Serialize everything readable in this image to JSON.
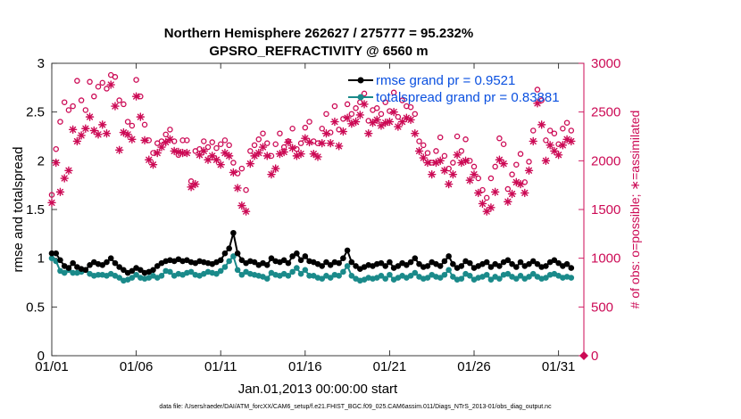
{
  "chart_data": {
    "type": "line",
    "title": "Northern Hemisphere 262627 / 275777 = 95.232%",
    "subtitle": "GPSRO_REFRACTIVITY @ 6560 m",
    "xlabel": "Jan.01,2013 00:00:00 start",
    "ylabel": "rmse and totalspread",
    "ylabel_right": "# of obs: o=possible; ∗=assimilated",
    "footer": "data file: /Users/raeder/DAI/ATM_forcXX/CAM6_setup/f.e21.FHIST_BGC.f09_025.CAM6assim.011/Diags_NTrS_2013-01/obs_diag_output.nc",
    "xlim": [
      1,
      32.5
    ],
    "ylim": [
      0,
      3
    ],
    "ylim_right": [
      0,
      3000
    ],
    "x_ticks": [
      1,
      6,
      11,
      16,
      21,
      26,
      31
    ],
    "x_tick_labels": [
      "01/01",
      "01/06",
      "01/11",
      "01/16",
      "01/21",
      "01/26",
      "01/31"
    ],
    "y_ticks": [
      0,
      0.5,
      1,
      1.5,
      2,
      2.5,
      3
    ],
    "y_tick_labels": [
      "0",
      "0.5",
      "1",
      "1.5",
      "2",
      "2.5",
      "3"
    ],
    "y_right_ticks": [
      0,
      500,
      1000,
      1500,
      2000,
      2500,
      3000
    ],
    "y_right_tick_labels": [
      "0",
      "500",
      "1000",
      "1500",
      "2000",
      "2500",
      "3000"
    ],
    "grid": false,
    "legend_position": "top-right",
    "colors": {
      "rmse": "#000000",
      "totalspread": "#1a8a8a",
      "obs": "#cc0a55",
      "legend_text": "#0a50e0"
    },
    "x": [
      1.0,
      1.25,
      1.5,
      1.75,
      2.0,
      2.25,
      2.5,
      2.75,
      3.0,
      3.25,
      3.5,
      3.75,
      4.0,
      4.25,
      4.5,
      4.75,
      5.0,
      5.25,
      5.5,
      5.75,
      6.0,
      6.25,
      6.5,
      6.75,
      7.0,
      7.25,
      7.5,
      7.75,
      8.0,
      8.25,
      8.5,
      8.75,
      9.0,
      9.25,
      9.5,
      9.75,
      10.0,
      10.25,
      10.5,
      10.75,
      11.0,
      11.25,
      11.5,
      11.75,
      12.0,
      12.25,
      12.5,
      12.75,
      13.0,
      13.25,
      13.5,
      13.75,
      14.0,
      14.25,
      14.5,
      14.75,
      15.0,
      15.25,
      15.5,
      15.75,
      16.0,
      16.25,
      16.5,
      16.75,
      17.0,
      17.25,
      17.5,
      17.75,
      18.0,
      18.25,
      18.5,
      18.75,
      19.0,
      19.25,
      19.5,
      19.75,
      20.0,
      20.25,
      20.5,
      20.75,
      21.0,
      21.25,
      21.5,
      21.75,
      22.0,
      22.25,
      22.5,
      22.75,
      23.0,
      23.25,
      23.5,
      23.75,
      24.0,
      24.25,
      24.5,
      24.75,
      25.0,
      25.25,
      25.5,
      25.75,
      26.0,
      26.25,
      26.5,
      26.75,
      27.0,
      27.25,
      27.5,
      27.75,
      28.0,
      28.25,
      28.5,
      28.75,
      29.0,
      29.25,
      29.5,
      29.75,
      30.0,
      30.25,
      30.5,
      30.75,
      31.0,
      31.25,
      31.5,
      31.75
    ],
    "series": [
      {
        "name": "rmse grand pr = 0.9521",
        "axis": "left",
        "style": "black-line-dots",
        "values": [
          1.05,
          1.05,
          0.98,
          0.92,
          0.9,
          0.95,
          0.91,
          0.89,
          0.88,
          0.93,
          0.96,
          0.94,
          0.93,
          0.96,
          1.0,
          0.95,
          0.91,
          0.88,
          0.85,
          0.87,
          0.9,
          0.88,
          0.85,
          0.86,
          0.88,
          0.92,
          0.95,
          0.97,
          0.98,
          0.97,
          0.99,
          0.97,
          0.98,
          0.96,
          0.95,
          0.97,
          0.96,
          0.95,
          0.94,
          0.96,
          0.98,
          1.05,
          1.1,
          1.26,
          1.05,
          0.98,
          0.95,
          0.97,
          0.96,
          0.93,
          0.95,
          0.93,
          1.0,
          0.97,
          0.96,
          0.98,
          0.95,
          1.02,
          1.05,
          0.98,
          1.02,
          0.97,
          0.96,
          0.94,
          0.92,
          0.96,
          0.93,
          0.96,
          0.95,
          1.0,
          1.08,
          0.96,
          0.92,
          0.89,
          0.91,
          0.93,
          0.92,
          0.94,
          0.95,
          0.92,
          0.96,
          0.9,
          0.92,
          0.95,
          0.93,
          0.96,
          1.0,
          0.94,
          0.91,
          0.92,
          0.96,
          0.94,
          0.92,
          0.97,
          1.02,
          0.94,
          0.9,
          0.92,
          0.97,
          0.95,
          0.9,
          0.92,
          0.94,
          0.96,
          0.91,
          0.94,
          0.92,
          0.96,
          0.98,
          0.94,
          0.91,
          0.96,
          0.92,
          0.94,
          0.97,
          0.94,
          0.91,
          0.92,
          0.96,
          0.98,
          0.95,
          0.92,
          0.94,
          0.9
        ],
        "std": null
      },
      {
        "name": "totalspread grand pr = 0.83881",
        "axis": "left",
        "style": "teal-line-dots",
        "values": [
          1.0,
          0.97,
          0.87,
          0.85,
          0.88,
          0.85,
          0.85,
          0.86,
          0.88,
          0.84,
          0.82,
          0.83,
          0.83,
          0.82,
          0.84,
          0.82,
          0.8,
          0.77,
          0.78,
          0.8,
          0.83,
          0.8,
          0.79,
          0.8,
          0.82,
          0.8,
          0.82,
          0.87,
          0.86,
          0.82,
          0.84,
          0.83,
          0.85,
          0.86,
          0.83,
          0.82,
          0.84,
          0.86,
          0.85,
          0.84,
          0.87,
          0.91,
          0.97,
          1.02,
          0.88,
          0.83,
          0.86,
          0.84,
          0.83,
          0.82,
          0.81,
          0.79,
          0.85,
          0.83,
          0.82,
          0.84,
          0.82,
          0.86,
          0.9,
          0.84,
          0.88,
          0.82,
          0.82,
          0.8,
          0.79,
          0.82,
          0.8,
          0.83,
          0.82,
          0.86,
          0.92,
          0.82,
          0.79,
          0.77,
          0.78,
          0.8,
          0.79,
          0.8,
          0.82,
          0.79,
          0.83,
          0.78,
          0.8,
          0.82,
          0.8,
          0.82,
          0.85,
          0.81,
          0.79,
          0.8,
          0.83,
          0.81,
          0.8,
          0.83,
          0.88,
          0.81,
          0.78,
          0.79,
          0.84,
          0.82,
          0.78,
          0.8,
          0.81,
          0.83,
          0.78,
          0.81,
          0.79,
          0.83,
          0.84,
          0.81,
          0.79,
          0.82,
          0.79,
          0.81,
          0.84,
          0.81,
          0.79,
          0.8,
          0.83,
          0.84,
          0.82,
          0.8,
          0.81,
          0.8
        ]
      },
      {
        "name": "possible",
        "axis": "right",
        "style": "pink-circles",
        "values": [
          1650,
          2120,
          2400,
          2600,
          2520,
          2560,
          2820,
          2620,
          2520,
          2810,
          2660,
          2760,
          2800,
          2740,
          2880,
          2860,
          2620,
          2580,
          2400,
          2360,
          2830,
          2660,
          2370,
          2210,
          2080,
          2180,
          2200,
          2270,
          2320,
          2200,
          2060,
          2210,
          2210,
          1790,
          2100,
          2120,
          2200,
          2140,
          2190,
          2130,
          2170,
          2210,
          2160,
          1980,
          1870,
          1920,
          1700,
          2100,
          2160,
          2220,
          2280,
          2180,
          2050,
          2170,
          2280,
          2140,
          2200,
          2330,
          2120,
          2180,
          2340,
          2400,
          2200,
          2180,
          2330,
          2480,
          2290,
          2560,
          2320,
          2430,
          2580,
          2480,
          2540,
          2600,
          2690,
          2410,
          2520,
          2540,
          2480,
          2600,
          2510,
          2700,
          2450,
          2620,
          2560,
          2550,
          2480,
          2200,
          2160,
          2080,
          1980,
          2100,
          2240,
          2050,
          1920,
          1980,
          2250,
          2100,
          2220,
          2000,
          1940,
          1820,
          1700,
          1620,
          1820,
          1940,
          2230,
          2170,
          1710,
          1860,
          1960,
          2070,
          1780,
          1990,
          2310,
          2730,
          2620,
          2210,
          2310,
          2280,
          2170,
          2330,
          2390,
          2310
        ],
        "std": null
      },
      {
        "name": "assimilated",
        "axis": "right",
        "style": "pink-asterisks",
        "values": [
          1570,
          1980,
          1680,
          1820,
          1900,
          2320,
          2200,
          2260,
          2330,
          2450,
          2310,
          2270,
          2370,
          2280,
          2780,
          2560,
          2110,
          2290,
          2270,
          2220,
          2660,
          2450,
          2210,
          2010,
          1960,
          2080,
          2140,
          2190,
          2220,
          2100,
          2090,
          2080,
          2080,
          1730,
          1760,
          2060,
          2100,
          2010,
          2050,
          2010,
          1960,
          2080,
          2050,
          1880,
          1720,
          1540,
          1480,
          1970,
          2050,
          2080,
          2140,
          2050,
          1860,
          1920,
          2070,
          2090,
          2190,
          2130,
          2050,
          2070,
          2230,
          2190,
          2070,
          2040,
          2180,
          2280,
          2180,
          2400,
          2150,
          2300,
          2440,
          2380,
          2400,
          2470,
          2580,
          2280,
          2390,
          2420,
          2360,
          2390,
          2400,
          2500,
          2350,
          2400,
          2440,
          2420,
          2280,
          2100,
          2030,
          1980,
          1860,
          1980,
          2000,
          1900,
          1760,
          1860,
          2060,
          1980,
          2000,
          1800,
          1860,
          1670,
          1560,
          1480,
          1520,
          1680,
          2010,
          1970,
          1580,
          1660,
          1780,
          1760,
          1670,
          1900,
          2200,
          2590,
          2370,
          2000,
          2160,
          2100,
          2060,
          2160,
          2220,
          2200
        ],
        "std": null
      }
    ]
  }
}
